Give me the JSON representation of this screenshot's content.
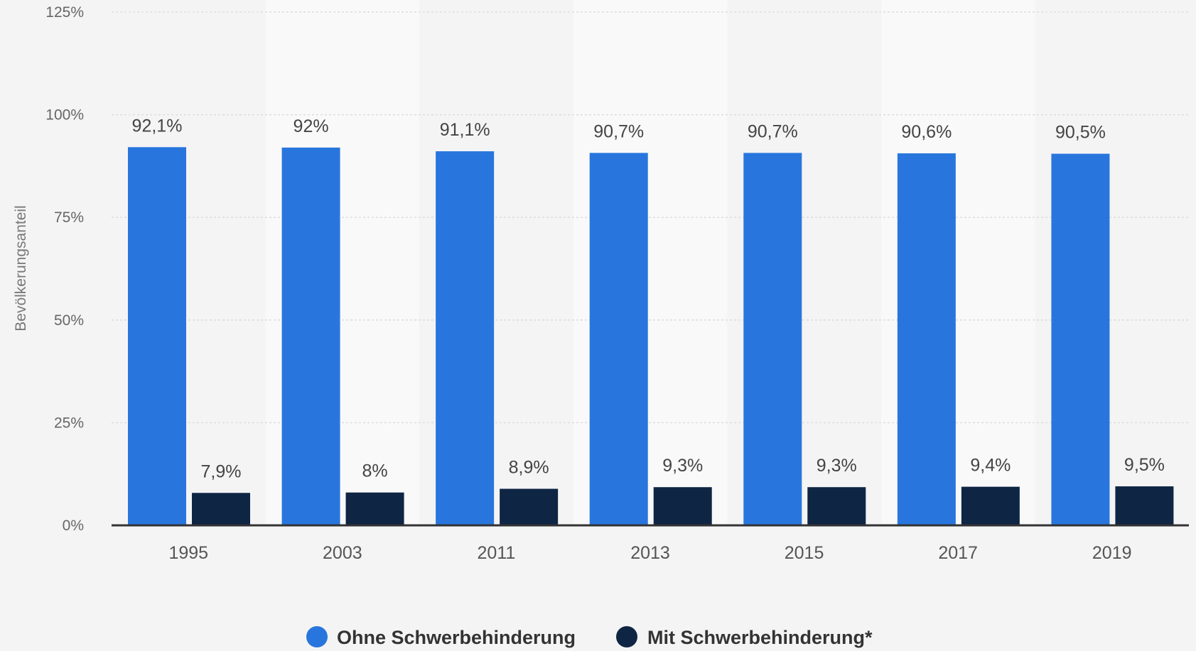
{
  "chart_data": {
    "type": "bar",
    "categories": [
      "1995",
      "2003",
      "2011",
      "2013",
      "2015",
      "2017",
      "2019"
    ],
    "series": [
      {
        "name": "Ohne Schwerbehinderung",
        "color": "#2876dd",
        "values": [
          92.1,
          92,
          91.1,
          90.7,
          90.7,
          90.6,
          90.5
        ],
        "labels": [
          "92,1%",
          "92%",
          "91,1%",
          "90,7%",
          "90,7%",
          "90,6%",
          "90,5%"
        ]
      },
      {
        "name": "Mit Schwerbehinderung*",
        "color": "#0f2544",
        "values": [
          7.9,
          8,
          8.9,
          9.3,
          9.3,
          9.4,
          9.5
        ],
        "labels": [
          "7,9%",
          "8%",
          "8,9%",
          "9,3%",
          "9,3%",
          "9,4%",
          "9,5%"
        ]
      }
    ],
    "ylabel": "Bevölkerungsanteil",
    "xlabel": "",
    "ylim": [
      0,
      125
    ],
    "yticks": [
      0,
      25,
      50,
      75,
      100,
      125
    ],
    "ytick_labels": [
      "0%",
      "25%",
      "50%",
      "75%",
      "100%",
      "125%"
    ],
    "grid": true,
    "legend_position": "bottom-center"
  }
}
